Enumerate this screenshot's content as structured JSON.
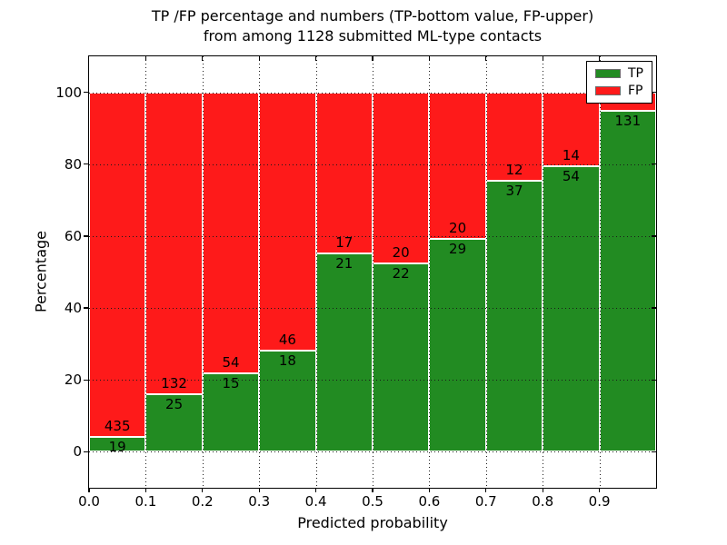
{
  "chart_data": {
    "type": "bar",
    "mode": "stacked-percentage",
    "title": [
      "TP /FP percentage and numbers (TP-bottom value, FP-upper)",
      "from among 1128 submitted ML-type contacts"
    ],
    "xlabel": "Predicted probability",
    "ylabel": "Percentage",
    "xlim": [
      0.0,
      1.0
    ],
    "ylim": [
      -10,
      110
    ],
    "xticks": [
      "0.0",
      "0.1",
      "0.2",
      "0.3",
      "0.4",
      "0.5",
      "0.6",
      "0.7",
      "0.8",
      "0.9"
    ],
    "yticks": [
      "0",
      "20",
      "40",
      "60",
      "80",
      "100"
    ],
    "grid": {
      "style": "dotted",
      "color": "#1a1a1a",
      "drawn_over_bars": true
    },
    "legend": {
      "position": "upper-right",
      "entries": [
        {
          "label": "TP",
          "color": "#228b22"
        },
        {
          "label": "FP",
          "color": "#fe1a1a"
        }
      ]
    },
    "total_contacts": 1128,
    "bar_edge_color": "#ffffff",
    "bars": [
      {
        "x_start": 0.0,
        "x_end": 0.1,
        "tp": 19,
        "fp": 435,
        "tp_label_visible": true,
        "fp_label_visible": true
      },
      {
        "x_start": 0.1,
        "x_end": 0.2,
        "tp": 25,
        "fp": 132,
        "tp_label_visible": true,
        "fp_label_visible": true
      },
      {
        "x_start": 0.2,
        "x_end": 0.3,
        "tp": 15,
        "fp": 54,
        "tp_label_visible": true,
        "fp_label_visible": true
      },
      {
        "x_start": 0.3,
        "x_end": 0.4,
        "tp": 18,
        "fp": 46,
        "tp_label_visible": true,
        "fp_label_visible": true
      },
      {
        "x_start": 0.4,
        "x_end": 0.5,
        "tp": 21,
        "fp": 17,
        "tp_label_visible": true,
        "fp_label_visible": true
      },
      {
        "x_start": 0.5,
        "x_end": 0.6,
        "tp": 22,
        "fp": 20,
        "tp_label_visible": true,
        "fp_label_visible": true
      },
      {
        "x_start": 0.6,
        "x_end": 0.7,
        "tp": 29,
        "fp": 20,
        "tp_label_visible": true,
        "fp_label_visible": true
      },
      {
        "x_start": 0.7,
        "x_end": 0.8,
        "tp": 37,
        "fp": 12,
        "tp_label_visible": true,
        "fp_label_visible": true
      },
      {
        "x_start": 0.8,
        "x_end": 0.9,
        "tp": 54,
        "fp": 14,
        "tp_label_visible": true,
        "fp_label_visible": true
      },
      {
        "x_start": 0.9,
        "x_end": 1.0,
        "tp": 131,
        "fp": 7,
        "tp_label_visible": true,
        "fp_label_visible": false
      }
    ],
    "series": [
      {
        "name": "TP",
        "values": [
          19,
          25,
          15,
          18,
          21,
          22,
          29,
          37,
          54,
          131
        ]
      },
      {
        "name": "FP",
        "values": [
          435,
          132,
          54,
          46,
          17,
          20,
          20,
          12,
          14,
          7
        ]
      }
    ]
  }
}
